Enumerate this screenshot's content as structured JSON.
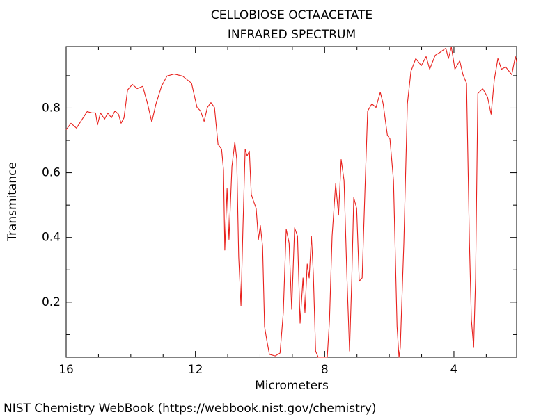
{
  "chart_data": {
    "type": "line",
    "title": "CELLOBIOSE OCTAACETATE",
    "subtitle": "INFRARED SPECTRUM",
    "x_label": "Micrometers",
    "y_label": "Transmitance",
    "source": "NIST Chemistry WebBook (https://webbook.nist.gov/chemistry)",
    "color": "#e8201c",
    "xlim": [
      16,
      2.06
    ],
    "ylim": [
      0.03,
      0.99
    ],
    "xticks": [
      16,
      12,
      8,
      4
    ],
    "yticks": [
      0.2,
      0.4,
      0.6,
      0.8
    ],
    "xminorticks": [
      15,
      14,
      13,
      11,
      10,
      9,
      7,
      6,
      5,
      3
    ],
    "yminorticks": [
      0.1,
      0.3,
      0.5,
      0.7,
      0.9
    ],
    "x": [
      16.0,
      15.85,
      15.68,
      15.5,
      15.35,
      15.2,
      15.09,
      15.03,
      14.94,
      14.81,
      14.71,
      14.6,
      14.49,
      14.38,
      14.3,
      14.21,
      14.1,
      13.95,
      13.8,
      13.63,
      13.48,
      13.35,
      13.22,
      13.05,
      12.88,
      12.66,
      12.4,
      12.12,
      11.95,
      11.84,
      11.73,
      11.63,
      11.52,
      11.41,
      11.3,
      11.19,
      11.13,
      11.09,
      11.02,
      10.96,
      10.87,
      10.78,
      10.72,
      10.66,
      10.59,
      10.53,
      10.46,
      10.4,
      10.33,
      10.27,
      10.2,
      10.12,
      10.05,
      9.99,
      9.92,
      9.86,
      9.79,
      9.71,
      9.53,
      9.38,
      9.28,
      9.19,
      9.1,
      9.02,
      8.93,
      8.84,
      8.76,
      8.67,
      8.61,
      8.54,
      8.48,
      8.41,
      8.35,
      8.28,
      8.2,
      7.92,
      7.85,
      7.77,
      7.66,
      7.57,
      7.49,
      7.4,
      7.31,
      7.23,
      7.16,
      7.1,
      7.01,
      6.93,
      6.84,
      6.75,
      6.67,
      6.54,
      6.41,
      6.28,
      6.19,
      6.06,
      5.98,
      5.87,
      5.76,
      5.7,
      5.66,
      5.55,
      5.44,
      5.33,
      5.18,
      5.01,
      4.86,
      4.75,
      4.58,
      4.43,
      4.25,
      4.17,
      4.08,
      3.97,
      3.82,
      3.72,
      3.61,
      3.52,
      3.46,
      3.39,
      3.33,
      3.26,
      3.11,
      2.96,
      2.85,
      2.75,
      2.64,
      2.53,
      2.4,
      2.21,
      2.1,
      2.06
    ],
    "values": [
      0.733,
      0.753,
      0.738,
      0.766,
      0.789,
      0.785,
      0.785,
      0.748,
      0.785,
      0.766,
      0.785,
      0.77,
      0.791,
      0.781,
      0.753,
      0.77,
      0.856,
      0.873,
      0.86,
      0.867,
      0.813,
      0.757,
      0.813,
      0.867,
      0.899,
      0.905,
      0.899,
      0.877,
      0.802,
      0.791,
      0.759,
      0.802,
      0.817,
      0.802,
      0.688,
      0.673,
      0.609,
      0.361,
      0.551,
      0.394,
      0.619,
      0.695,
      0.641,
      0.34,
      0.189,
      0.426,
      0.673,
      0.652,
      0.667,
      0.533,
      0.512,
      0.49,
      0.394,
      0.437,
      0.372,
      0.125,
      0.082,
      0.039,
      0.034,
      0.043,
      0.168,
      0.426,
      0.383,
      0.178,
      0.43,
      0.404,
      0.135,
      0.275,
      0.168,
      0.318,
      0.275,
      0.404,
      0.286,
      0.049,
      0.03,
      0.03,
      0.146,
      0.404,
      0.566,
      0.469,
      0.641,
      0.576,
      0.275,
      0.049,
      0.275,
      0.523,
      0.49,
      0.265,
      0.275,
      0.555,
      0.791,
      0.813,
      0.802,
      0.849,
      0.813,
      0.716,
      0.705,
      0.576,
      0.125,
      0.03,
      0.06,
      0.383,
      0.813,
      0.914,
      0.953,
      0.931,
      0.959,
      0.92,
      0.963,
      0.972,
      0.985,
      0.953,
      0.989,
      0.92,
      0.946,
      0.903,
      0.877,
      0.383,
      0.146,
      0.06,
      0.275,
      0.845,
      0.86,
      0.834,
      0.781,
      0.888,
      0.953,
      0.92,
      0.927,
      0.903,
      0.959,
      0.942
    ]
  }
}
